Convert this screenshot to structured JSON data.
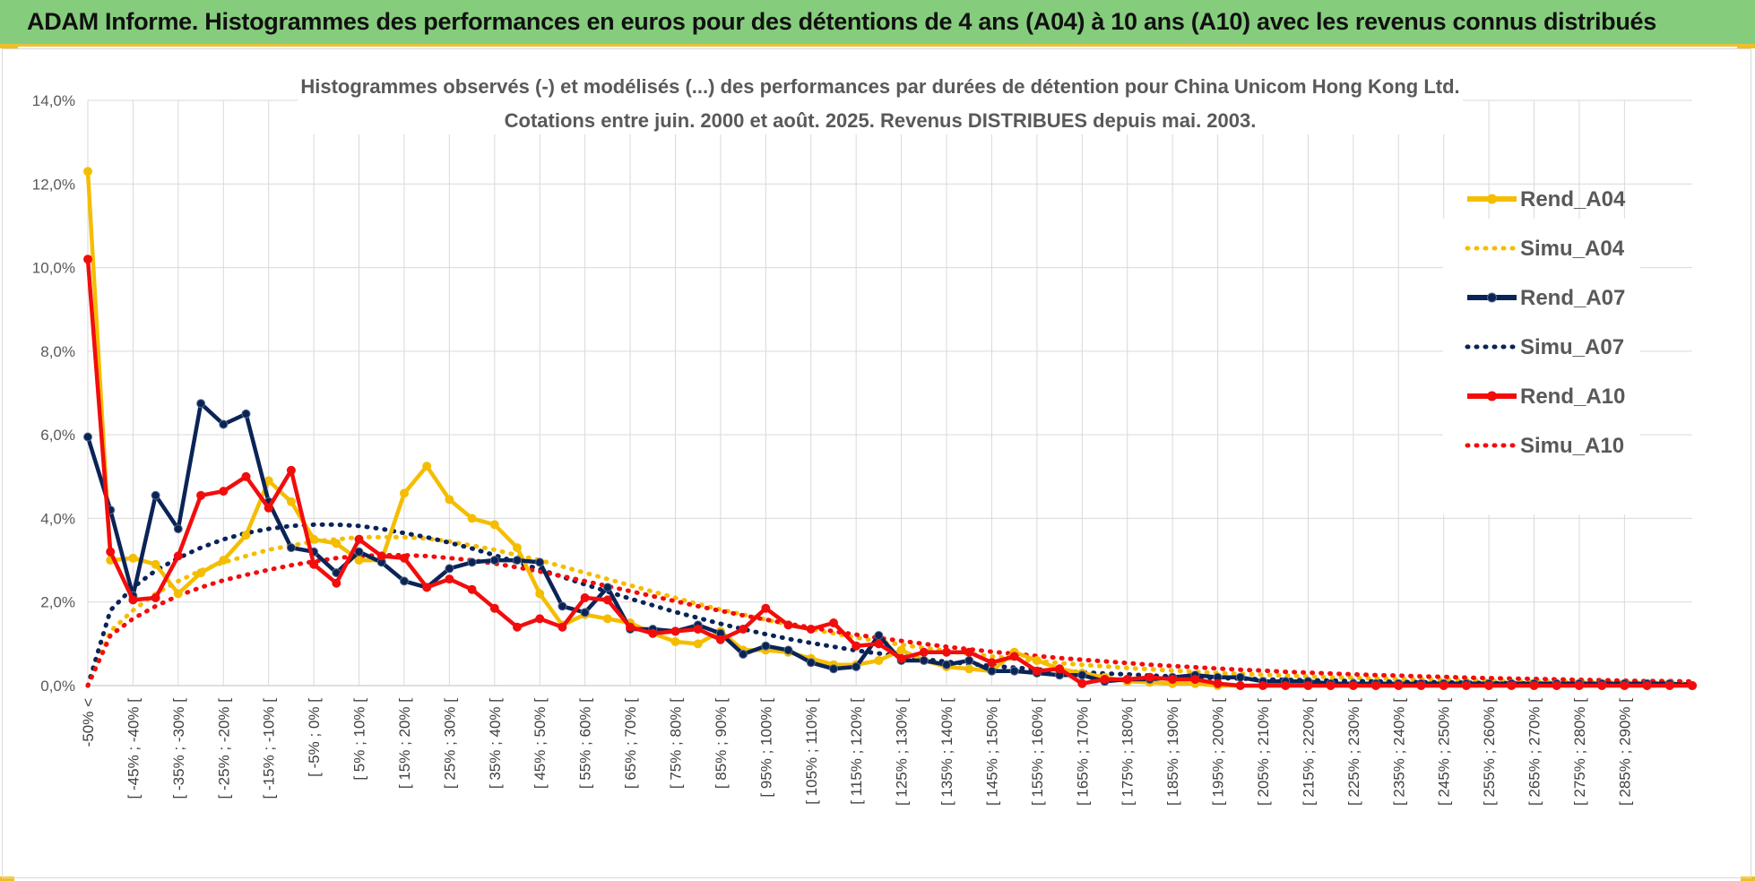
{
  "banner": {
    "title": "ADAM Informe. Histogrammes des performances en euros pour des détentions de 4 ans (A04) à 10 ans (A10) avec les revenus connus distribués"
  },
  "colors": {
    "banner_bg": "#86cc7d",
    "accent": "#f2c01a",
    "A04": "#f5bd00",
    "A07": "#0b2457",
    "A10": "#f20d0d"
  },
  "chart_data": {
    "type": "line",
    "title": [
      "Histogrammes observés (-) et modélisés (...)  des performances par durées de détention pour China Unicom Hong Kong Ltd.",
      "Cotations entre juin. 2000 et août. 2025. Revenus DISTRIBUES depuis mai. 2003."
    ],
    "y_ticks": [
      "0,0%",
      "2,0%",
      "4,0%",
      "6,0%",
      "8,0%",
      "10,0%",
      "12,0%",
      "14,0%"
    ],
    "ylim": [
      0,
      14
    ],
    "grid": true,
    "legend_position": "top-right",
    "x_labels": [
      "-50% <",
      "[ -45% ; -40% [",
      "[ -35% ; -30% [",
      "[ -25% ; -20% [",
      "[ -15% ; -10% [",
      "[ -5% ; 0% [",
      "[ 5% ; 10% [",
      "[ 15% ; 20% [",
      "[ 25% ; 30% [",
      "[ 35% ; 40% [",
      "[ 45% ; 50% [",
      "[ 55% ; 60% [",
      "[ 65% ; 70% [",
      "[ 75% ; 80% [",
      "[ 85% ; 90% [",
      "[ 95% ; 100% [",
      "[ 105% ; 110% [",
      "[ 115% ; 120% [",
      "[ 125% ; 130% [",
      "[ 135% ; 140% [",
      "[ 145% ; 150% [",
      "[ 155% ; 160% [",
      "[ 165% ; 170% [",
      "[ 175% ; 180% [",
      "[ 185% ; 190% [",
      "[ 195% ; 200% [",
      "[ 205% ; 210% [",
      "[ 215% ; 220% [",
      "[ 225% ; 230% [",
      "[ 235% ; 240% [",
      "[ 245% ; 250% [",
      "[ 255% ; 260% [",
      "[ 265% ; 270% [",
      "[ 275% ; 280% [",
      "[ 285% ; 290% ["
    ],
    "series": [
      {
        "name": "Rend_A04",
        "style": "solid",
        "color": "#f5bd00",
        "values": [
          12.3,
          3.0,
          3.05,
          2.9,
          2.2,
          2.7,
          3.0,
          3.6,
          4.9,
          4.4,
          3.5,
          3.4,
          3.0,
          3.0,
          4.6,
          5.25,
          4.45,
          4.0,
          3.85,
          3.3,
          2.2,
          1.45,
          1.7,
          1.6,
          1.5,
          1.25,
          1.05,
          1.0,
          1.3,
          0.85,
          0.85,
          0.8,
          0.65,
          0.5,
          0.5,
          0.6,
          0.85,
          0.6,
          0.45,
          0.4,
          0.35,
          0.8,
          0.6,
          0.4,
          0.3,
          0.2,
          0.1,
          0.08,
          0.05,
          0.05,
          0.0,
          0.0,
          0.0,
          0.0,
          0.0,
          0.0,
          0.0,
          0.0,
          0.0,
          0.0,
          0.0,
          0.0,
          0.0,
          0.0,
          0.0,
          0.0,
          0.0,
          0.0,
          0.0,
          0.0,
          0.0,
          0.0
        ]
      },
      {
        "name": "Simu_A04",
        "style": "dotted",
        "color": "#f5bd00",
        "values": [
          0.0,
          1.3,
          1.8,
          2.2,
          2.5,
          2.75,
          2.95,
          3.1,
          3.25,
          3.35,
          3.45,
          3.5,
          3.55,
          3.55,
          3.55,
          3.52,
          3.45,
          3.35,
          3.25,
          3.12,
          3.0,
          2.85,
          2.7,
          2.55,
          2.4,
          2.25,
          2.1,
          1.95,
          1.82,
          1.7,
          1.58,
          1.46,
          1.35,
          1.25,
          1.15,
          1.06,
          0.98,
          0.9,
          0.83,
          0.76,
          0.7,
          0.64,
          0.59,
          0.54,
          0.5,
          0.46,
          0.42,
          0.39,
          0.36,
          0.33,
          0.3,
          0.28,
          0.26,
          0.24,
          0.22,
          0.2,
          0.19,
          0.17,
          0.16,
          0.15,
          0.14,
          0.13,
          0.12,
          0.11,
          0.1,
          0.1,
          0.09,
          0.08,
          0.08,
          0.07,
          0.07,
          0.06
        ]
      },
      {
        "name": "Rend_A07",
        "style": "solid",
        "color": "#0b2457",
        "values": [
          5.95,
          4.2,
          2.15,
          4.55,
          3.75,
          6.75,
          6.25,
          6.5,
          4.4,
          3.3,
          3.2,
          2.7,
          3.2,
          2.95,
          2.5,
          2.35,
          2.8,
          2.95,
          3.0,
          3.0,
          2.95,
          1.9,
          1.75,
          2.35,
          1.35,
          1.35,
          1.3,
          1.45,
          1.25,
          0.75,
          0.95,
          0.85,
          0.55,
          0.4,
          0.45,
          1.2,
          0.6,
          0.6,
          0.5,
          0.6,
          0.35,
          0.35,
          0.3,
          0.25,
          0.25,
          0.1,
          0.15,
          0.15,
          0.2,
          0.25,
          0.2,
          0.2,
          0.1,
          0.1,
          0.1,
          0.05,
          0.05,
          0.05,
          0.05,
          0.05,
          0.05,
          0.05,
          0.05,
          0.05,
          0.05,
          0.05,
          0.05,
          0.05,
          0.05,
          0.05,
          0.05,
          0.0
        ]
      },
      {
        "name": "Simu_A07",
        "style": "dotted",
        "color": "#0b2457",
        "values": [
          0.0,
          1.8,
          2.35,
          2.75,
          3.05,
          3.3,
          3.5,
          3.65,
          3.75,
          3.82,
          3.85,
          3.85,
          3.82,
          3.75,
          3.65,
          3.55,
          3.42,
          3.28,
          3.12,
          2.95,
          2.78,
          2.6,
          2.42,
          2.25,
          2.08,
          1.92,
          1.76,
          1.62,
          1.48,
          1.35,
          1.23,
          1.12,
          1.02,
          0.93,
          0.84,
          0.77,
          0.7,
          0.63,
          0.57,
          0.52,
          0.47,
          0.43,
          0.39,
          0.35,
          0.32,
          0.29,
          0.27,
          0.24,
          0.22,
          0.2,
          0.18,
          0.17,
          0.15,
          0.14,
          0.13,
          0.12,
          0.11,
          0.1,
          0.09,
          0.08,
          0.08,
          0.07,
          0.06,
          0.06,
          0.05,
          0.05,
          0.05,
          0.04,
          0.04,
          0.04,
          0.03,
          0.03
        ]
      },
      {
        "name": "Rend_A10",
        "style": "solid",
        "color": "#f20d0d",
        "values": [
          10.2,
          3.2,
          2.05,
          2.1,
          3.1,
          4.55,
          4.65,
          5.0,
          4.25,
          5.15,
          2.9,
          2.45,
          3.5,
          3.1,
          3.05,
          2.35,
          2.55,
          2.3,
          1.85,
          1.4,
          1.6,
          1.4,
          2.1,
          2.05,
          1.4,
          1.25,
          1.3,
          1.35,
          1.1,
          1.35,
          1.85,
          1.45,
          1.35,
          1.5,
          0.95,
          1.0,
          0.65,
          0.8,
          0.8,
          0.8,
          0.55,
          0.7,
          0.35,
          0.4,
          0.05,
          0.15,
          0.15,
          0.2,
          0.15,
          0.15,
          0.05,
          0.0,
          0.0,
          0.0,
          0.0,
          0.0,
          0.0,
          0.0,
          0.0,
          0.0,
          0.0,
          0.0,
          0.0,
          0.0,
          0.0,
          0.0,
          0.0,
          0.0,
          0.0,
          0.0,
          0.0,
          0.0
        ]
      },
      {
        "name": "Simu_A10",
        "style": "dotted",
        "color": "#f20d0d",
        "values": [
          0.0,
          1.2,
          1.6,
          1.9,
          2.15,
          2.35,
          2.52,
          2.65,
          2.77,
          2.88,
          2.97,
          3.05,
          3.1,
          3.12,
          3.12,
          3.1,
          3.05,
          3.0,
          2.92,
          2.83,
          2.73,
          2.62,
          2.5,
          2.38,
          2.26,
          2.14,
          2.02,
          1.9,
          1.79,
          1.68,
          1.58,
          1.48,
          1.39,
          1.3,
          1.22,
          1.14,
          1.07,
          1.0,
          0.93,
          0.87,
          0.81,
          0.76,
          0.71,
          0.66,
          0.62,
          0.58,
          0.54,
          0.5,
          0.47,
          0.44,
          0.41,
          0.38,
          0.36,
          0.33,
          0.31,
          0.29,
          0.27,
          0.25,
          0.24,
          0.22,
          0.21,
          0.19,
          0.18,
          0.17,
          0.16,
          0.15,
          0.14,
          0.13,
          0.12,
          0.11,
          0.11,
          0.1
        ]
      }
    ]
  }
}
